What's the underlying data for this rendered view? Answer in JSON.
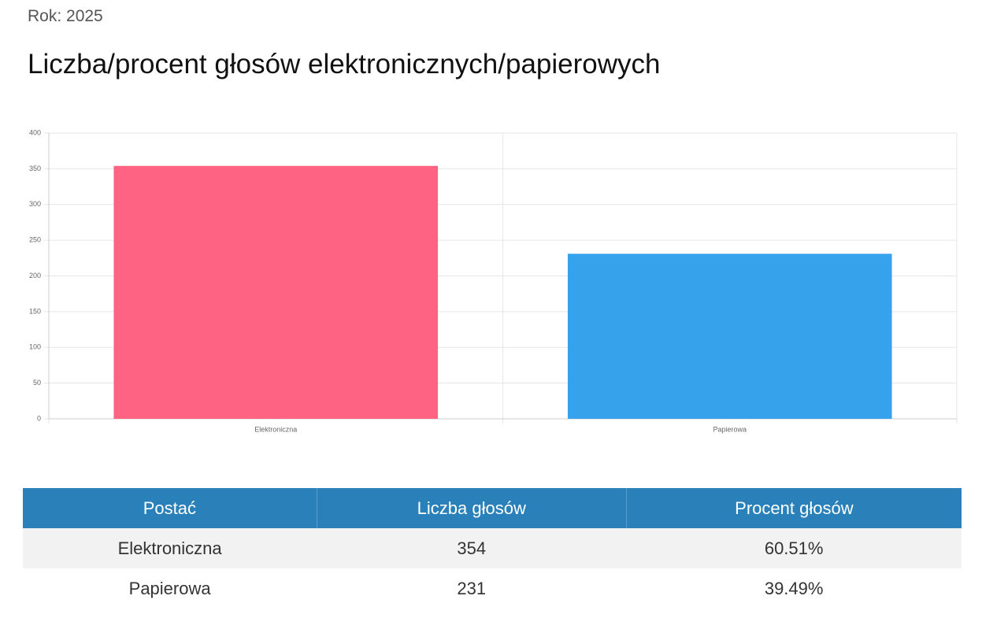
{
  "year_label": "Rok: 2025",
  "heading": "Liczba/procent głosów elektronicznych/papierowych",
  "chart_data": {
    "type": "bar",
    "categories": [
      "Elektroniczna",
      "Papierowa"
    ],
    "values": [
      354,
      231
    ],
    "colors": [
      "#ff6384",
      "#36a2eb"
    ],
    "ylim": [
      0,
      400
    ],
    "yticks": [
      0,
      50,
      100,
      150,
      200,
      250,
      300,
      350,
      400
    ],
    "grid": true
  },
  "table": {
    "headers": [
      "Postać",
      "Liczba głosów",
      "Procent głosów"
    ],
    "rows": [
      [
        "Elektroniczna",
        "354",
        "60.51%"
      ],
      [
        "Papierowa",
        "231",
        "39.49%"
      ]
    ]
  }
}
